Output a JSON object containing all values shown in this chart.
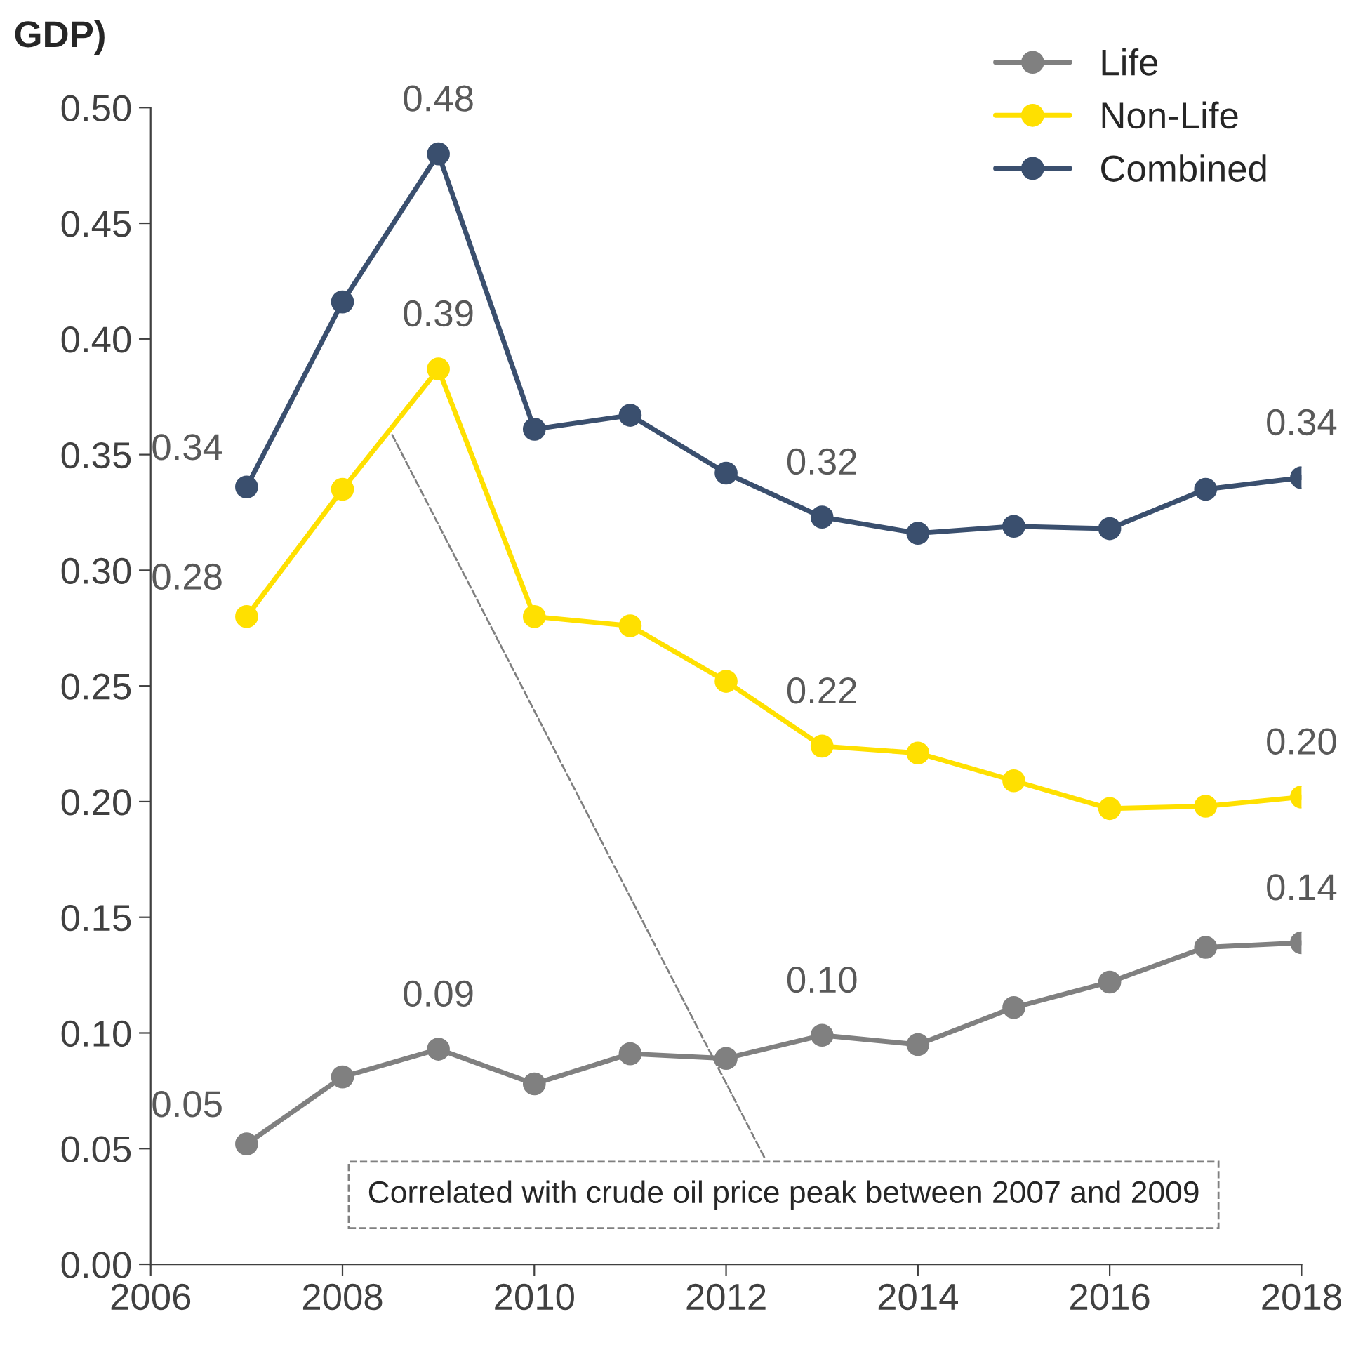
{
  "chart_data": {
    "type": "line",
    "title": "GDP)",
    "x": [
      2007,
      2008,
      2009,
      2010,
      2011,
      2012,
      2013,
      2014,
      2015,
      2016,
      2017,
      2018
    ],
    "series": [
      {
        "name": "Life",
        "color": "#808080",
        "values": [
          0.052,
          0.081,
          0.093,
          0.078,
          0.091,
          0.089,
          0.099,
          0.095,
          0.111,
          0.122,
          0.137,
          0.139
        ],
        "value_labels": [
          "0.05",
          null,
          "0.09",
          null,
          null,
          null,
          "0.10",
          null,
          null,
          null,
          null,
          "0.14"
        ]
      },
      {
        "name": "Non-Life",
        "color": "#ffe000",
        "values": [
          0.28,
          0.335,
          0.387,
          0.28,
          0.276,
          0.252,
          0.224,
          0.221,
          0.209,
          0.197,
          0.198,
          0.202
        ],
        "value_labels": [
          "0.28",
          null,
          "0.39",
          null,
          null,
          null,
          "0.22",
          null,
          null,
          null,
          null,
          "0.20"
        ]
      },
      {
        "name": "Combined",
        "color": "#3a4f6e",
        "values": [
          0.336,
          0.416,
          0.48,
          0.361,
          0.367,
          0.342,
          0.323,
          0.316,
          0.319,
          0.318,
          0.335,
          0.34
        ],
        "value_labels": [
          "0.34",
          null,
          "0.48",
          null,
          null,
          null,
          "0.32",
          null,
          null,
          null,
          null,
          "0.34"
        ]
      }
    ],
    "xlim": [
      2006,
      2018
    ],
    "xticks": [
      2006,
      2008,
      2010,
      2012,
      2014,
      2016,
      2018
    ],
    "ylim": [
      0,
      0.5
    ],
    "yticks": [
      {
        "value": 0,
        "label": "0.00"
      },
      {
        "value": 0.05,
        "label": "0.05"
      },
      {
        "value": 0.1,
        "label": "0.10"
      },
      {
        "value": 0.15,
        "label": "0.15"
      },
      {
        "value": 0.2,
        "label": "0.20"
      },
      {
        "value": 0.25,
        "label": "0.25"
      },
      {
        "value": 0.3,
        "label": "0.30"
      },
      {
        "value": 0.35,
        "label": "0.35"
      },
      {
        "value": 0.4,
        "label": "0.40"
      },
      {
        "value": 0.45,
        "label": "0.45"
      },
      {
        "value": 0.5,
        "label": "0.50"
      }
    ],
    "annotations": [
      {
        "text": "Correlated with crude oil price peak between 2007 and 2009",
        "x": 2008.5,
        "y": 0.36
      }
    ],
    "grid": false,
    "legend": "top right",
    "marker": "circle",
    "line_style": "solid"
  }
}
